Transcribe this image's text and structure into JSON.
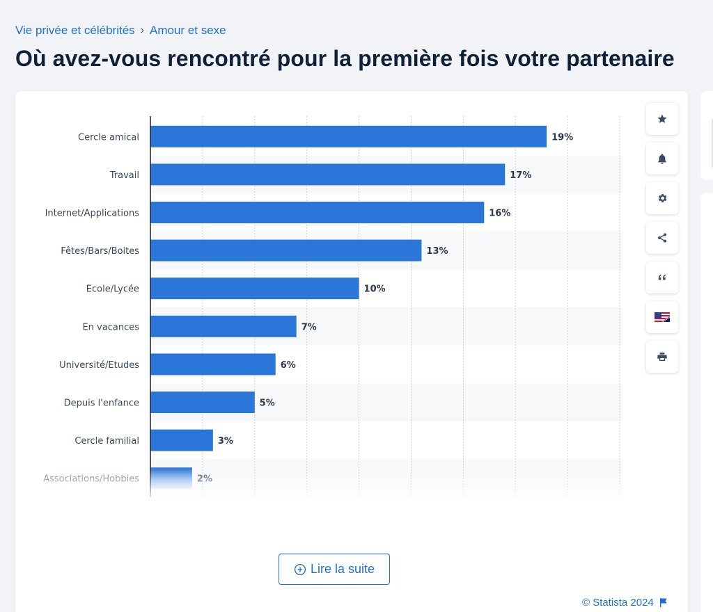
{
  "breadcrumb": {
    "item1": "Vie privée et célébrités",
    "separator": "›",
    "item2": "Amour et sexe"
  },
  "title": "Où avez-vous rencontré pour la première fois votre partenaire",
  "chart_data": {
    "type": "bar",
    "orientation": "horizontal",
    "categories": [
      "Cercle amical",
      "Travail",
      "Internet/Applications",
      "Fêtes/Bars/Boites",
      "Ecole/Lycée",
      "En vacances",
      "Université/Etudes",
      "Depuis l'enfance",
      "Cercle familial",
      "Associations/Hobbies"
    ],
    "values": [
      19,
      17,
      16,
      13,
      10,
      7,
      6,
      5,
      3,
      2
    ],
    "value_suffix": "%",
    "xlim": [
      0,
      22.5
    ],
    "gridlines": "vertical, dotted",
    "bar_color": "#2a76d9"
  },
  "toolbar": {
    "icons": [
      "star-icon",
      "bell-icon",
      "gear-icon",
      "share-icon",
      "quote-icon",
      "flag-us-uk-icon",
      "print-icon"
    ]
  },
  "read_more": {
    "label": "Lire la suite"
  },
  "credit": {
    "text": "© Statista 2024"
  }
}
